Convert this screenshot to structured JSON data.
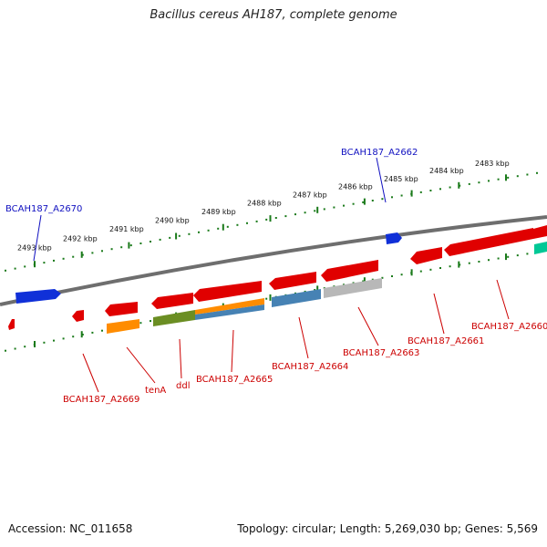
{
  "title": "Bacillus cereus AH187, complete genome",
  "footer": {
    "accession": "Accession: NC_011658",
    "summary": "Topology: circular; Length: 5,269,030 bp; Genes: 5,569"
  },
  "colors": {
    "forward_label": "#1010c0",
    "reverse_label": "#cc0000",
    "ticks": "#1a7a1a",
    "backbone": "#7a7a7a",
    "gene_red": "#e00000",
    "gene_blue": "#1030d8",
    "gene_orange": "#ff8c00",
    "gene_olive": "#6b8e23",
    "gene_steel": "#4682b4",
    "gene_silver": "#b8b8b8",
    "gene_teal": "#00c896"
  },
  "scale_ticks": [
    {
      "label": "2493 kbp"
    },
    {
      "label": "2492 kbp"
    },
    {
      "label": "2491 kbp"
    },
    {
      "label": "2490 kbp"
    },
    {
      "label": "2489 kbp"
    },
    {
      "label": "2488 kbp"
    },
    {
      "label": "2487 kbp"
    },
    {
      "label": "2486 kbp"
    },
    {
      "label": "2485 kbp"
    },
    {
      "label": "2484 kbp"
    },
    {
      "label": "2483 kbp"
    }
  ],
  "gene_labels": {
    "BCAH187_A2670": "BCAH187_A2670",
    "BCAH187_A2662": "BCAH187_A2662",
    "BCAH187_A2669": "BCAH187_A2669",
    "tenA": "tenA",
    "ddl": "ddl",
    "BCAH187_A2665": "BCAH187_A2665",
    "BCAH187_A2664": "BCAH187_A2664",
    "BCAH187_A2663": "BCAH187_A2663",
    "BCAH187_A2661": "BCAH187_A2661",
    "BCAH187_A2660": "BCAH187_A2660"
  }
}
